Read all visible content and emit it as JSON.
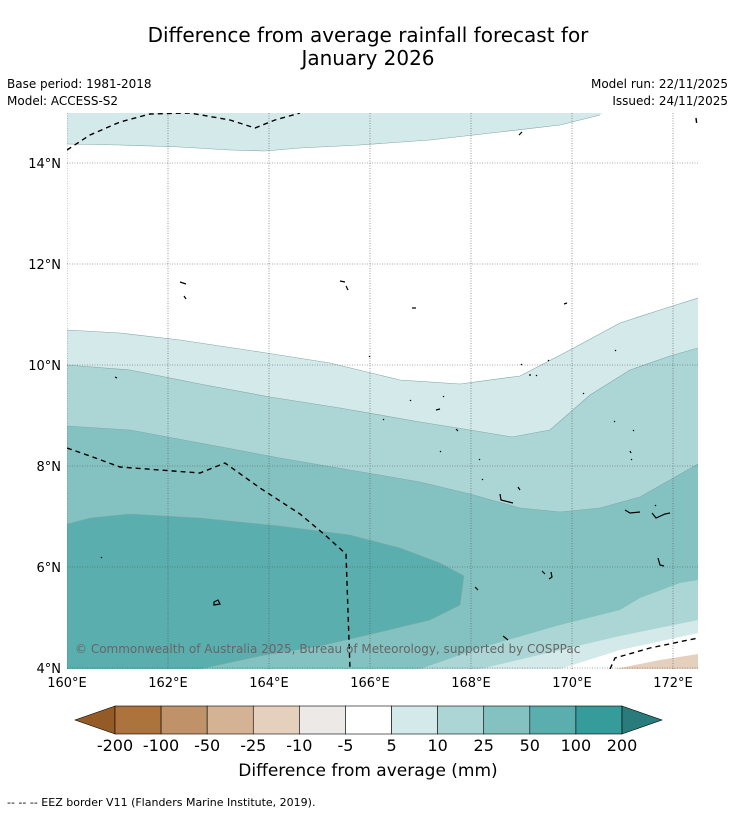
{
  "header": {
    "title_line1": "Difference from average rainfall forecast for",
    "title_line2": "January 2026",
    "base_period": "Base period: 1981-2018",
    "model": "Model: ACCESS-S2",
    "model_run": "Model run: 22/11/2025",
    "issued": "Issued: 24/11/2025"
  },
  "map": {
    "lat_labels": [
      "14°N",
      "12°N",
      "10°N",
      "8°N",
      "6°N",
      "4°N"
    ],
    "lon_labels": [
      "160°E",
      "162°E",
      "164°E",
      "166°E",
      "168°E",
      "170°E",
      "172°E"
    ],
    "copyright": "© Commonwealth of Australia 2025, Bureau of Meteorology, supported by COSPPac"
  },
  "colorbar": {
    "tick_labels": [
      "-200",
      "-100",
      "-50",
      "-25",
      "-10",
      "-5",
      "5",
      "10",
      "25",
      "50",
      "100",
      "200"
    ],
    "colors": [
      "#955b27",
      "#ad733c",
      "#c09269",
      "#d3b394",
      "#e5d0bd",
      "#ece9e6",
      "#ffffff",
      "#d4e9e9",
      "#acd6d6",
      "#84c2c1",
      "#5aaeae",
      "#359b9b",
      "#2a7b7b"
    ],
    "title": "Difference from average (mm)"
  },
  "footnote": "--  --  -- EEZ border V11 (Flanders Marine Institute, 2019)."
}
